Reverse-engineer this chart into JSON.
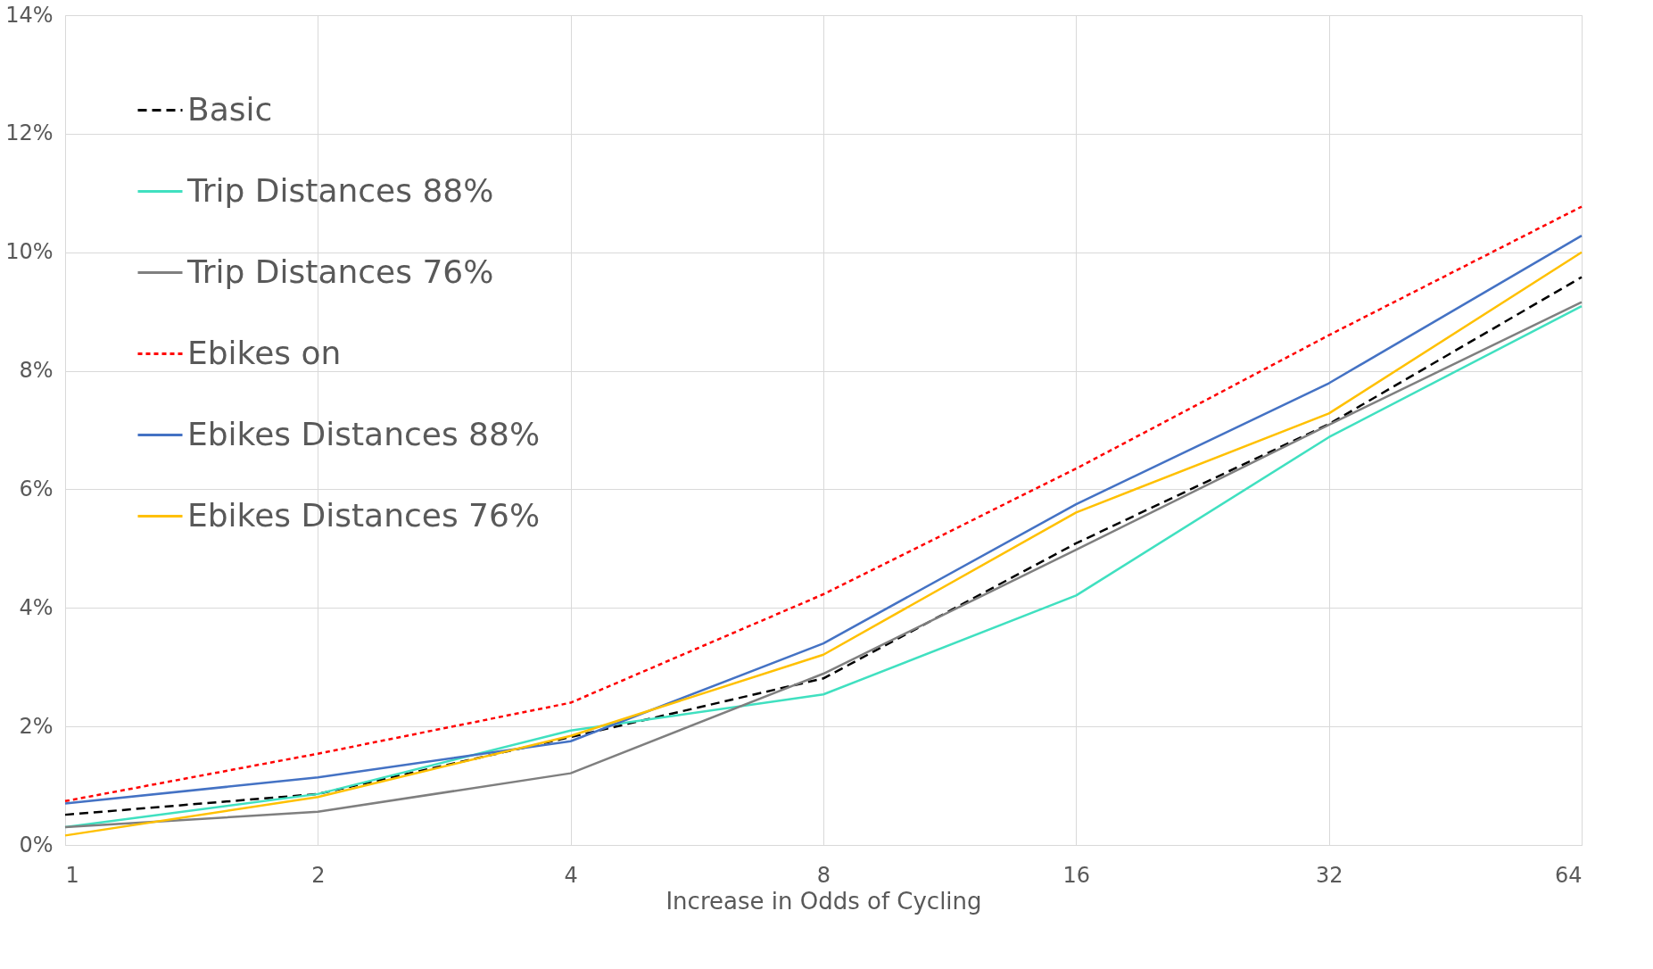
{
  "chart_data": {
    "type": "line",
    "xlabel": "Increase in Odds of Cycling",
    "log": "x",
    "x": [
      1,
      2,
      4,
      8,
      16,
      32,
      64
    ],
    "xlim": [
      1,
      64
    ],
    "xticks": [
      1,
      2,
      4,
      8,
      16,
      32,
      64
    ],
    "ylim": [
      0,
      14
    ],
    "yticks": [
      {
        "value": 0,
        "label": "0%"
      },
      {
        "value": 2,
        "label": "2%"
      },
      {
        "value": 4,
        "label": "4%"
      },
      {
        "value": 6,
        "label": "6%"
      },
      {
        "value": 8,
        "label": "8%"
      },
      {
        "value": 10,
        "label": "10%"
      },
      {
        "value": 12,
        "label": "12%"
      },
      {
        "value": 14,
        "label": "14%"
      }
    ],
    "grid": true,
    "legend": "top left",
    "marker": "none",
    "series": [
      {
        "name": "Basic",
        "color": "#000000",
        "line_style": "dashed",
        "values": [
          0.51,
          0.86,
          1.82,
          2.81,
          5.09,
          7.1,
          9.58
        ]
      },
      {
        "name": "Trip Distances 88%",
        "color": "#40e0c0",
        "line_style": "solid",
        "values": [
          0.3,
          0.86,
          1.93,
          2.54,
          4.21,
          6.88,
          9.09
        ]
      },
      {
        "name": "Trip Distances 76%",
        "color": "#7f7f7f",
        "line_style": "solid",
        "values": [
          0.3,
          0.56,
          1.21,
          2.89,
          4.98,
          7.09,
          9.16
        ]
      },
      {
        "name": "Ebikes on",
        "color": "#ff0000",
        "line_style": "dotted",
        "values": [
          0.74,
          1.54,
          2.4,
          4.23,
          6.35,
          8.6,
          10.77
        ]
      },
      {
        "name": "Ebikes Distances 88%",
        "color": "#4472c4",
        "line_style": "solid",
        "values": [
          0.7,
          1.14,
          1.75,
          3.4,
          5.75,
          7.79,
          10.28
        ]
      },
      {
        "name": "Ebikes Distances 76%",
        "color": "#ffc000",
        "line_style": "solid",
        "values": [
          0.16,
          0.81,
          1.84,
          3.21,
          5.61,
          7.28,
          10.0
        ]
      }
    ]
  }
}
